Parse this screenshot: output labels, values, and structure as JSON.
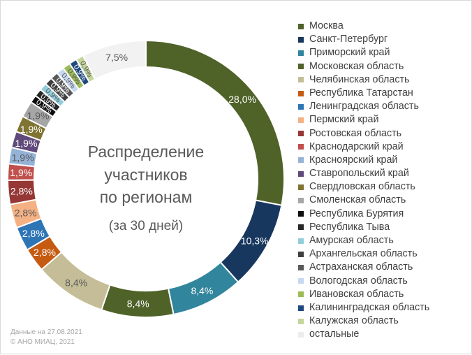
{
  "chart_data": {
    "type": "pie",
    "title": "Распределение участников по регионам",
    "title_lines": [
      "Распределение",
      "участников",
      "по регионам"
    ],
    "subtitle": "(за 30 дней)",
    "legend_position": "right",
    "slices": [
      {
        "label": "Москва",
        "value": 28.0,
        "value_label": "28,0%",
        "color": "#4f6228"
      },
      {
        "label": "Санкт-Петербург",
        "value": 10.3,
        "value_label": "10,3%",
        "color": "#17375e"
      },
      {
        "label": "Приморский край",
        "value": 8.4,
        "value_label": "8,4%",
        "color": "#31859c"
      },
      {
        "label": "Московская область",
        "value": 8.4,
        "value_label": "8,4%",
        "color": "#4f6228"
      },
      {
        "label": "Челябинская область",
        "value": 8.4,
        "value_label": "8,4%",
        "color": "#c4bd97"
      },
      {
        "label": "Республика Татарстан",
        "value": 2.8,
        "value_label": "2,8%",
        "color": "#c55a11"
      },
      {
        "label": "Ленинградская область",
        "value": 2.8,
        "value_label": "2,8%",
        "color": "#2e75b6"
      },
      {
        "label": "Пермский край",
        "value": 2.8,
        "value_label": "2,8%",
        "color": "#f4b183"
      },
      {
        "label": "Ростовская область",
        "value": 2.8,
        "value_label": "2,8%",
        "color": "#953735"
      },
      {
        "label": "Краснодарский край",
        "value": 1.9,
        "value_label": "1,9%",
        "color": "#c0504d"
      },
      {
        "label": "Красноярский край",
        "value": 1.9,
        "value_label": "1,9%",
        "color": "#95b3d7"
      },
      {
        "label": "Ставропольский край",
        "value": 1.9,
        "value_label": "1,9%",
        "color": "#604a7b"
      },
      {
        "label": "Свердловская область",
        "value": 1.9,
        "value_label": "1,9%",
        "color": "#7f7431"
      },
      {
        "label": "Смоленская область",
        "value": 1.9,
        "value_label": "1,9%",
        "color": "#a6a6a6"
      },
      {
        "label": "Республика Бурятия",
        "value": 0.9,
        "value_label": "0,9%",
        "color": "#0d0d0d"
      },
      {
        "label": "Республика Тыва",
        "value": 0.9,
        "value_label": "0,9%",
        "color": "#262626"
      },
      {
        "label": "Амурская область",
        "value": 0.9,
        "value_label": "0,9%",
        "color": "#92cddc"
      },
      {
        "label": "Архангельская область",
        "value": 0.9,
        "value_label": "0,9%",
        "color": "#3f3f3f"
      },
      {
        "label": "Астраханская область",
        "value": 0.9,
        "value_label": "0,9%",
        "color": "#595959"
      },
      {
        "label": "Вологодская область",
        "value": 0.9,
        "value_label": "0,9%",
        "color": "#c6d9f1"
      },
      {
        "label": "Ивановская область",
        "value": 0.9,
        "value_label": "0,9%",
        "color": "#9bbb59"
      },
      {
        "label": "Калининградская область",
        "value": 0.9,
        "value_label": "0,9%",
        "color": "#1f497d"
      },
      {
        "label": "Калужская область",
        "value": 0.9,
        "value_label": "0,9%",
        "color": "#c3d69b"
      },
      {
        "label": "остальные",
        "value": 7.5,
        "value_label": "7,5%",
        "color": "#f2f2f2"
      }
    ]
  },
  "footnote": {
    "line1": "Данные на 27.08.2021",
    "line2": "© АНО МИАЦ, 2021"
  }
}
